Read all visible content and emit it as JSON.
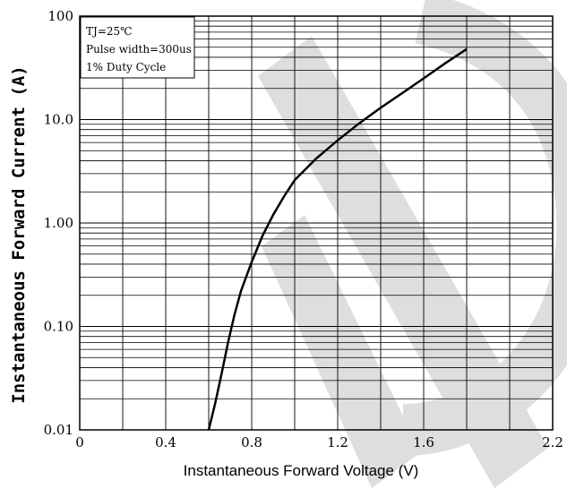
{
  "chart_data": {
    "type": "line",
    "xlabel": "Instantaneous  Forward Voltage (V)",
    "ylabel": "Instantaneous  Forward Current (A)",
    "xlim": [
      0,
      2.2
    ],
    "ylim": [
      0.01,
      100
    ],
    "yscale": "log",
    "x_ticks": [
      0,
      0.4,
      0.8,
      1.2,
      1.6,
      2.2
    ],
    "x_tick_labels": [
      "0",
      "0.4",
      "0.8",
      "1.2",
      "1.6",
      "2.2"
    ],
    "y_tick_values": [
      100,
      10,
      1,
      0.1,
      0.01
    ],
    "y_tick_labels": [
      "100",
      "10.0",
      "1.00",
      "0.10",
      "0.01"
    ],
    "grid": true,
    "annotation_lines": [
      "TJ=25℃",
      "Pulse width=300us",
      "1% Duty Cycle"
    ],
    "series": [
      {
        "x": [
          0.6,
          0.63,
          0.66,
          0.69,
          0.72,
          0.75,
          0.8,
          0.85,
          0.9,
          0.95,
          1.0,
          1.1,
          1.2,
          1.3,
          1.4,
          1.5,
          1.6,
          1.7,
          1.8
        ],
        "y": [
          0.01,
          0.018,
          0.035,
          0.07,
          0.13,
          0.22,
          0.42,
          0.75,
          1.2,
          1.8,
          2.6,
          4.2,
          6.3,
          9.2,
          13,
          18,
          25,
          35,
          48
        ]
      }
    ]
  },
  "watermark_color": "#dedede"
}
